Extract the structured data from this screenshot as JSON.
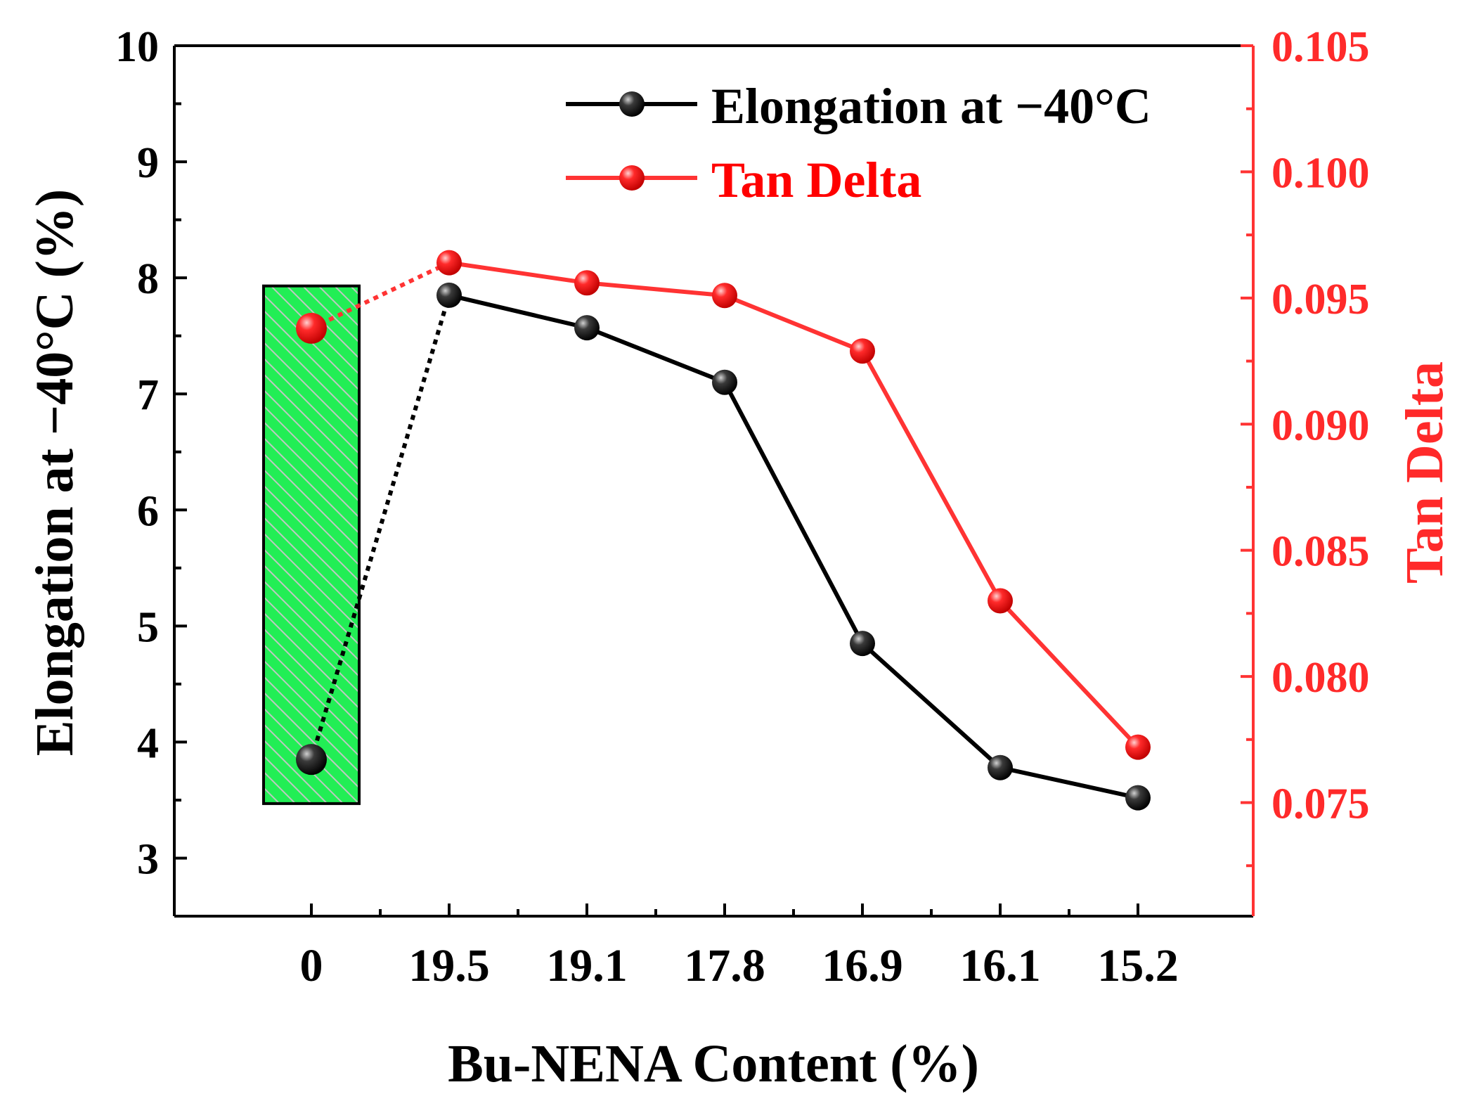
{
  "chart_data": {
    "type": "line",
    "title": "",
    "categories": [
      "0",
      "19.5",
      "19.1",
      "17.8",
      "16.9",
      "16.1",
      "15.2"
    ],
    "xlabel": "Bu-NENA Content (%)",
    "ylabel_left": "Elongation at −40°C (%)",
    "ylabel_right": "Tan Delta",
    "ylim_left": [
      2.5,
      10
    ],
    "ylim_right": [
      0.0705,
      0.105
    ],
    "yticks_left": [
      "3",
      "4",
      "5",
      "6",
      "7",
      "8",
      "9",
      "10"
    ],
    "yticks_right": [
      "0.075",
      "0.080",
      "0.085",
      "0.090",
      "0.095",
      "0.100",
      "0.105"
    ],
    "series": [
      {
        "name": "Elongation at −40°C",
        "axis": "left",
        "color": "#000000",
        "values": [
          3.85,
          7.85,
          7.57,
          7.1,
          4.85,
          3.78,
          3.52
        ],
        "dotted_first_segment": true
      },
      {
        "name": "Tan Delta",
        "axis": "right",
        "color": "#ff0000",
        "values": [
          0.0938,
          0.0964,
          0.0956,
          0.0951,
          0.0929,
          0.083,
          0.0772
        ],
        "dotted_first_segment": true
      }
    ],
    "highlight": {
      "category": "0",
      "fill": "#22ee55",
      "range_left": [
        3.47,
        7.93
      ]
    },
    "legend_location": "top-right",
    "grid": false
  }
}
